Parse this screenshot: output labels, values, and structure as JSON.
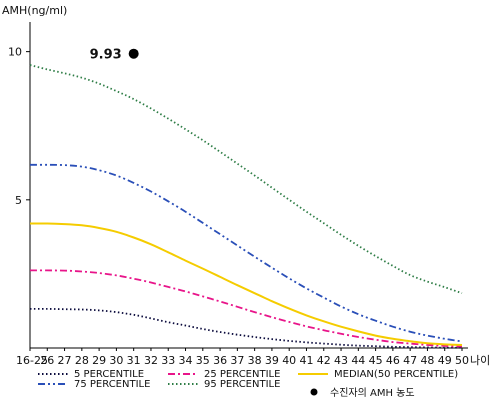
{
  "chart_data": {
    "type": "line",
    "title": "",
    "ylabel": "AMH(ng/ml)",
    "xlabel": "나이",
    "ylim": [
      0,
      11
    ],
    "y_ticks": [
      5,
      10
    ],
    "categories": [
      "16-25",
      "26",
      "27",
      "28",
      "29",
      "30",
      "31",
      "32",
      "33",
      "34",
      "35",
      "36",
      "37",
      "38",
      "39",
      "40",
      "41",
      "42",
      "43",
      "44",
      "45",
      "46",
      "47",
      "48",
      "49",
      "50"
    ],
    "series": [
      {
        "name": "5 PERCENTILE",
        "color": "#0a0a3c",
        "dash": "dot",
        "values": [
          1.32,
          1.32,
          1.31,
          1.3,
          1.27,
          1.21,
          1.12,
          1.0,
          0.87,
          0.76,
          0.64,
          0.54,
          0.45,
          0.37,
          0.3,
          0.24,
          0.19,
          0.15,
          0.11,
          0.08,
          0.06,
          0.04,
          0.03,
          0.02,
          0.01,
          0.01
        ]
      },
      {
        "name": "25 PERCENTILE",
        "color": "#e8158a",
        "dash": "dashdot",
        "values": [
          2.62,
          2.62,
          2.61,
          2.58,
          2.53,
          2.45,
          2.34,
          2.21,
          2.06,
          1.91,
          1.74,
          1.57,
          1.39,
          1.21,
          1.04,
          0.88,
          0.73,
          0.6,
          0.48,
          0.37,
          0.28,
          0.2,
          0.15,
          0.1,
          0.07,
          0.05
        ]
      },
      {
        "name": "MEDIAN(50 PERCENTILE)",
        "color": "#f5cc00",
        "dash": "solid",
        "values": [
          4.2,
          4.2,
          4.18,
          4.14,
          4.05,
          3.92,
          3.73,
          3.5,
          3.23,
          2.95,
          2.68,
          2.4,
          2.12,
          1.85,
          1.58,
          1.33,
          1.1,
          0.9,
          0.72,
          0.56,
          0.42,
          0.31,
          0.23,
          0.16,
          0.12,
          0.1
        ]
      },
      {
        "name": "75 PERCENTILE",
        "color": "#2a4fb8",
        "dash": "dashdotdot",
        "values": [
          6.18,
          6.18,
          6.17,
          6.12,
          6.0,
          5.82,
          5.57,
          5.28,
          4.95,
          4.6,
          4.22,
          3.84,
          3.46,
          3.08,
          2.71,
          2.35,
          2.01,
          1.7,
          1.4,
          1.14,
          0.92,
          0.72,
          0.55,
          0.42,
          0.31,
          0.22
        ]
      },
      {
        "name": "95 PERCENTILE",
        "color": "#2e7d46",
        "dash": "dot",
        "values": [
          9.55,
          9.4,
          9.27,
          9.12,
          8.92,
          8.67,
          8.4,
          8.08,
          7.74,
          7.38,
          7.01,
          6.62,
          6.22,
          5.82,
          5.41,
          5.0,
          4.6,
          4.21,
          3.82,
          3.45,
          3.1,
          2.77,
          2.46,
          2.24,
          2.05,
          1.85
        ]
      }
    ],
    "marker": {
      "name": "수진자의 AMH 농도",
      "x": "31",
      "y": 9.93,
      "label": "9.93",
      "color": "#000000"
    },
    "legend": {
      "position": "bottom"
    },
    "grid": false
  }
}
